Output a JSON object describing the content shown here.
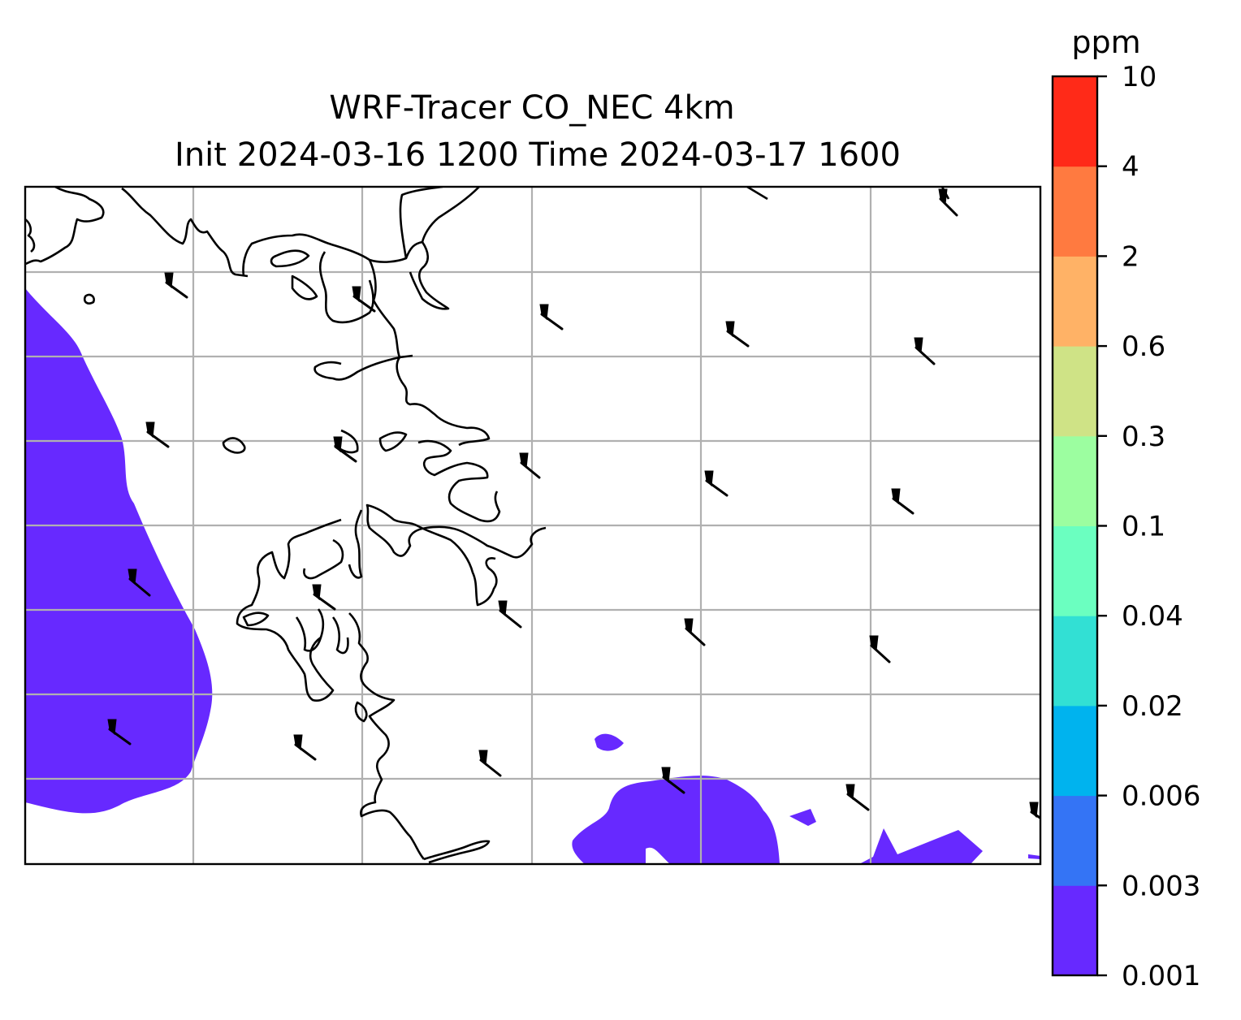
{
  "title": {
    "line1": "WRF-Tracer CO_NEC 4km",
    "line2": "Init 2024-03-16 1200 Time 2024-03-17 1600"
  },
  "colorbar": {
    "unit": "ppm",
    "ticks": [
      "0.001",
      "0.003",
      "0.006",
      "0.02",
      "0.04",
      "0.1",
      "0.3",
      "0.6",
      "2",
      "4",
      "10"
    ],
    "colors": [
      "#6729ff",
      "#3474f5",
      "#00b3ee",
      "#32e0d4",
      "#6bffc0",
      "#9cfea0",
      "#cfe386",
      "#ffb266",
      "#ff7a40",
      "#ff2a18"
    ]
  },
  "plume_color": "#6729ff",
  "coast_color": "#000000",
  "grid_color": "#b0b0b0"
}
